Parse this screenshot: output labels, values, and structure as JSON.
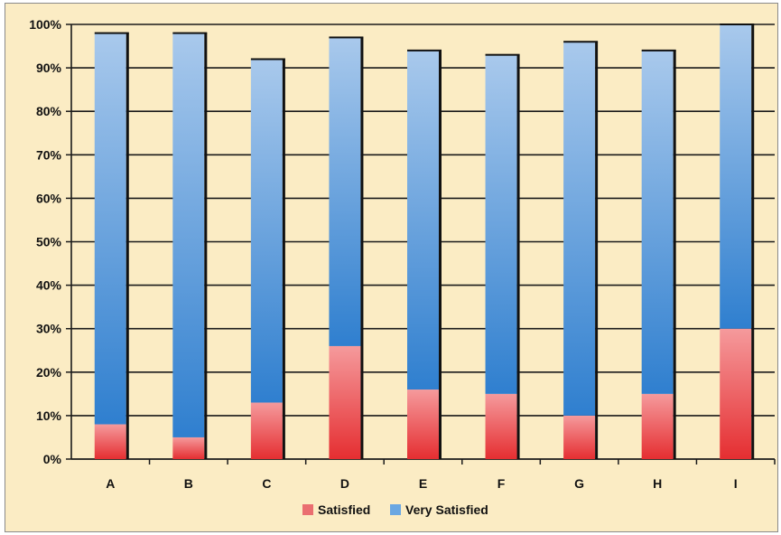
{
  "chart_data": {
    "type": "bar",
    "stacked": true,
    "title": "",
    "xlabel": "",
    "ylabel": "",
    "categories": [
      "A",
      "B",
      "C",
      "D",
      "E",
      "F",
      "G",
      "H",
      "I"
    ],
    "series": [
      {
        "name": "Satisfied",
        "values": [
          8,
          5,
          13,
          26,
          16,
          15,
          10,
          15,
          30
        ],
        "color": "#e8393b"
      },
      {
        "name": "Very Satisfied",
        "values": [
          90,
          93,
          79,
          71,
          78,
          78,
          86,
          79,
          70
        ],
        "color": "#4a90d6"
      }
    ],
    "ylim": [
      0,
      100
    ],
    "y_ticks": [
      "0%",
      "10%",
      "20%",
      "30%",
      "40%",
      "50%",
      "60%",
      "70%",
      "80%",
      "90%",
      "100%"
    ],
    "grid": true,
    "legend_position": "bottom",
    "background_color": "#fbecc4"
  }
}
